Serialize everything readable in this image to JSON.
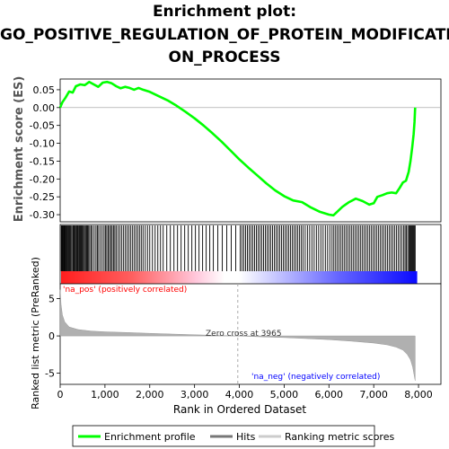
{
  "title_lines": [
    "Enrichment plot:",
    "GO_POSITIVE_REGULATION_OF_PROTEIN_MODIFICATI",
    "ON_PROCESS"
  ],
  "colors": {
    "es_line": "#00ff00",
    "hits": "#000000",
    "metric_fill": "#b0b0b0",
    "pos_red": "#ff0000",
    "neg_blue": "#0000ff"
  },
  "chart_data": {
    "type": "line",
    "es": {
      "ylabel": "Enrichment score (ES)",
      "ylim": [
        -0.32,
        0.08
      ],
      "yticks": [
        0.05,
        0.0,
        -0.05,
        -0.1,
        -0.15,
        -0.2,
        -0.25,
        -0.3
      ],
      "ytick_labels": [
        "0.05",
        "0.00",
        "-0.05",
        "-0.10",
        "-0.15",
        "-0.20",
        "-0.25",
        "-0.30"
      ],
      "points": [
        [
          0,
          0
        ],
        [
          50,
          0.015
        ],
        [
          120,
          0.028
        ],
        [
          200,
          0.045
        ],
        [
          280,
          0.042
        ],
        [
          350,
          0.06
        ],
        [
          450,
          0.065
        ],
        [
          550,
          0.063
        ],
        [
          650,
          0.072
        ],
        [
          750,
          0.065
        ],
        [
          850,
          0.058
        ],
        [
          950,
          0.07
        ],
        [
          1050,
          0.072
        ],
        [
          1150,
          0.068
        ],
        [
          1250,
          0.06
        ],
        [
          1350,
          0.054
        ],
        [
          1450,
          0.058
        ],
        [
          1550,
          0.055
        ],
        [
          1650,
          0.05
        ],
        [
          1750,
          0.055
        ],
        [
          1850,
          0.05
        ],
        [
          2000,
          0.044
        ],
        [
          2200,
          0.032
        ],
        [
          2400,
          0.02
        ],
        [
          2600,
          0.005
        ],
        [
          2800,
          -0.012
        ],
        [
          3000,
          -0.03
        ],
        [
          3200,
          -0.05
        ],
        [
          3400,
          -0.072
        ],
        [
          3600,
          -0.095
        ],
        [
          3800,
          -0.12
        ],
        [
          4000,
          -0.145
        ],
        [
          4200,
          -0.168
        ],
        [
          4400,
          -0.19
        ],
        [
          4600,
          -0.212
        ],
        [
          4800,
          -0.232
        ],
        [
          5000,
          -0.248
        ],
        [
          5200,
          -0.26
        ],
        [
          5400,
          -0.265
        ],
        [
          5600,
          -0.28
        ],
        [
          5800,
          -0.292
        ],
        [
          6000,
          -0.3
        ],
        [
          6100,
          -0.302
        ],
        [
          6200,
          -0.29
        ],
        [
          6300,
          -0.278
        ],
        [
          6450,
          -0.265
        ],
        [
          6600,
          -0.255
        ],
        [
          6750,
          -0.262
        ],
        [
          6900,
          -0.272
        ],
        [
          7000,
          -0.268
        ],
        [
          7080,
          -0.25
        ],
        [
          7200,
          -0.245
        ],
        [
          7300,
          -0.24
        ],
        [
          7400,
          -0.238
        ],
        [
          7500,
          -0.24
        ],
        [
          7580,
          -0.225
        ],
        [
          7650,
          -0.21
        ],
        [
          7720,
          -0.205
        ],
        [
          7780,
          -0.18
        ],
        [
          7820,
          -0.15
        ],
        [
          7860,
          -0.11
        ],
        [
          7890,
          -0.075
        ],
        [
          7910,
          -0.04
        ],
        [
          7925,
          0.0
        ]
      ]
    },
    "hits": {
      "max_rank": 8000,
      "positions": [
        25,
        40,
        55,
        70,
        85,
        100,
        118,
        135,
        150,
        172,
        190,
        210,
        232,
        255,
        280,
        300,
        318,
        338,
        360,
        380,
        398,
        420,
        440,
        460,
        480,
        500,
        522,
        545,
        568,
        590,
        612,
        635,
        660,
        690,
        720,
        760,
        800,
        830,
        860,
        900,
        940,
        980,
        1010,
        1040,
        1070,
        1100,
        1130,
        1160,
        1190,
        1220,
        1250,
        1290,
        1330,
        1370,
        1410,
        1450,
        1490,
        1530,
        1570,
        1610,
        1650,
        1690,
        1730,
        1770,
        1810,
        1850,
        1900,
        1950,
        2000,
        2060,
        2120,
        2180,
        2240,
        2300,
        2380,
        2460,
        2540,
        2620,
        2700,
        2780,
        2860,
        2940,
        3020,
        3100,
        3180,
        3260,
        3340,
        3420,
        3520,
        3620,
        3720,
        3820,
        3920,
        4020,
        4060,
        4100,
        4140,
        4180,
        4220,
        4260,
        4300,
        4340,
        4380,
        4420,
        4460,
        4500,
        4540,
        4580,
        4620,
        4660,
        4700,
        4740,
        4780,
        4820,
        4860,
        4900,
        4940,
        4980,
        5020,
        5060,
        5100,
        5140,
        5180,
        5220,
        5260,
        5300,
        5340,
        5380,
        5420,
        5470,
        5520,
        5570,
        5620,
        5670,
        5720,
        5770,
        5820,
        5870,
        5920,
        5970,
        6020,
        6070,
        6110,
        6150,
        6190,
        6230,
        6270,
        6310,
        6350,
        6390,
        6430,
        6470,
        6510,
        6550,
        6590,
        6630,
        6670,
        6710,
        6750,
        6790,
        6830,
        6870,
        6910,
        6950,
        6990,
        7030,
        7070,
        7110,
        7150,
        7190,
        7230,
        7270,
        7310,
        7350,
        7390,
        7430,
        7470,
        7510,
        7550,
        7590,
        7630,
        7670,
        7700,
        7730,
        7760,
        7790,
        7810,
        7830,
        7850,
        7870,
        7890,
        7910,
        7925
      ]
    },
    "metric": {
      "ylabel": "Ranked list metric (PreRanked)",
      "ylim": [
        -6.5,
        7
      ],
      "yticks": [
        5,
        0,
        -5
      ],
      "ytick_labels": [
        "5",
        "0",
        "-5"
      ],
      "points": [
        [
          0,
          6.2
        ],
        [
          20,
          4.2
        ],
        [
          50,
          2.8
        ],
        [
          100,
          1.9
        ],
        [
          200,
          1.2
        ],
        [
          400,
          0.85
        ],
        [
          700,
          0.65
        ],
        [
          1000,
          0.55
        ],
        [
          1500,
          0.45
        ],
        [
          2000,
          0.35
        ],
        [
          2500,
          0.25
        ],
        [
          3000,
          0.15
        ],
        [
          3500,
          0.07
        ],
        [
          3965,
          0
        ],
        [
          4500,
          -0.12
        ],
        [
          5000,
          -0.22
        ],
        [
          5500,
          -0.35
        ],
        [
          6000,
          -0.5
        ],
        [
          6500,
          -0.7
        ],
        [
          7000,
          -0.95
        ],
        [
          7300,
          -1.2
        ],
        [
          7500,
          -1.5
        ],
        [
          7650,
          -1.9
        ],
        [
          7750,
          -2.5
        ],
        [
          7820,
          -3.2
        ],
        [
          7870,
          -4.2
        ],
        [
          7900,
          -5.2
        ],
        [
          7925,
          -6.0
        ]
      ]
    },
    "xlabel": "Rank in Ordered Dataset",
    "xlim": [
      0,
      8500
    ],
    "xticks": [
      0,
      1000,
      2000,
      3000,
      4000,
      5000,
      6000,
      7000,
      8000
    ],
    "xtick_labels": [
      "0",
      "1,000",
      "2,000",
      "3,000",
      "4,000",
      "5,000",
      "6,000",
      "7,000",
      "8,000"
    ],
    "zero_cross": 3965,
    "annotations": {
      "zero_cross": "Zero cross at 3965",
      "pos": "'na_pos' (positively correlated)",
      "neg": "'na_neg' (negatively correlated)"
    },
    "legend": {
      "placement": "bottom",
      "items": [
        "Enrichment profile",
        "Hits",
        "Ranking metric scores"
      ]
    }
  }
}
